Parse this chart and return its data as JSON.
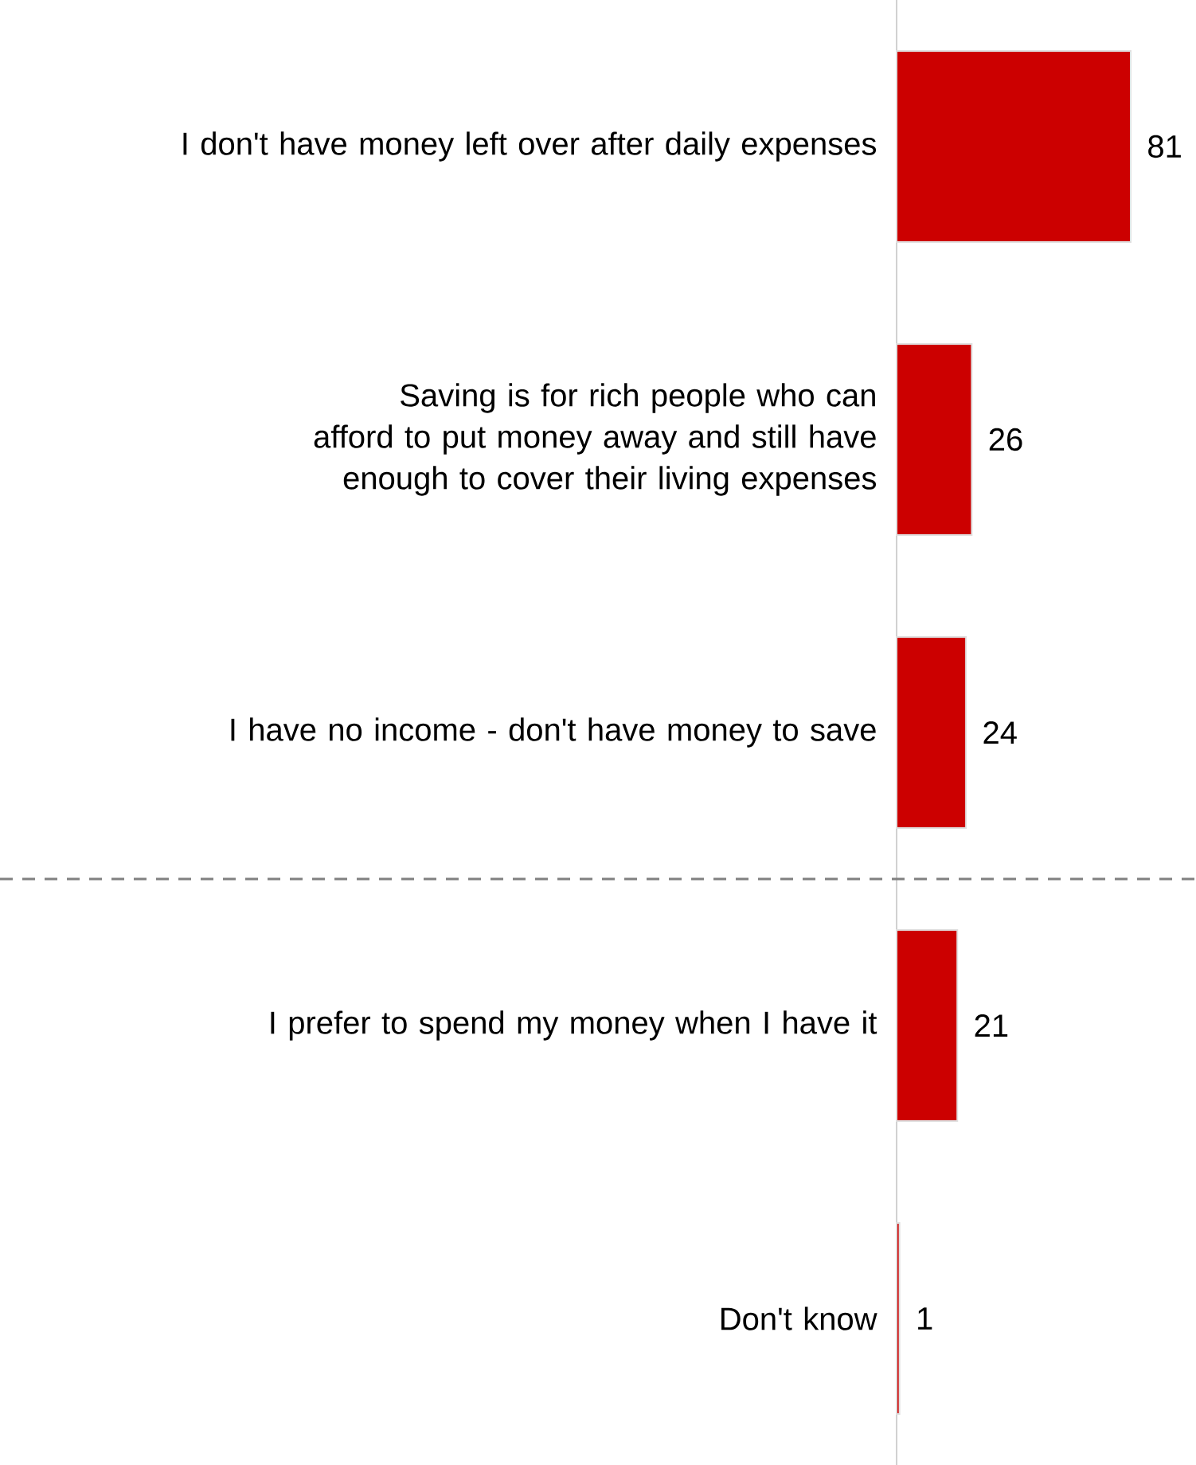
{
  "chart_data": {
    "type": "bar",
    "orientation": "horizontal",
    "categories": [
      "I don't have money left over after daily expenses",
      "Saving is for rich people who can afford to put money away and still have enough to cover their living expenses",
      "I have no income - don't have money to save",
      "I prefer to spend my money when I have it",
      "Don't know"
    ],
    "values": [
      81,
      26,
      24,
      21,
      1
    ],
    "color": "#cc0000",
    "tick_labels": "y",
    "data_labels": true
  }
}
